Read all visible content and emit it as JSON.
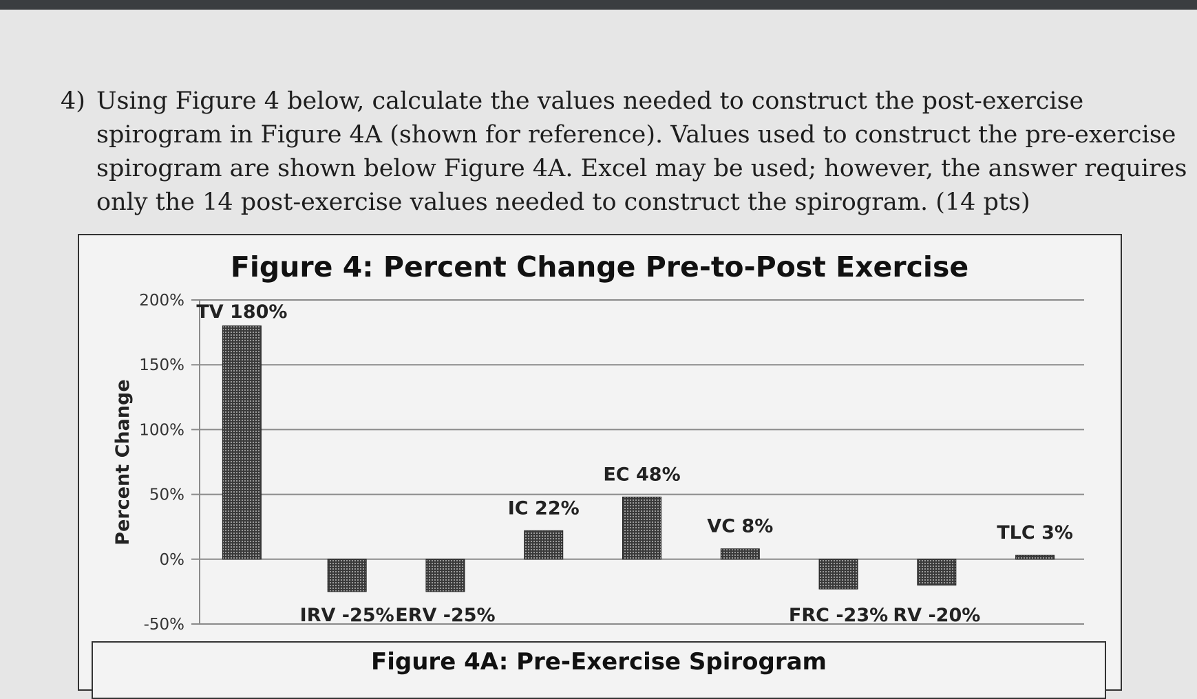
{
  "question": {
    "number": "4)",
    "lines": [
      "Using Figure 4 below, calculate the values needed to construct the post-exercise",
      "spirogram in Figure 4A (shown for reference).  Values used to construct the pre-exercise",
      "spirogram are shown below Figure 4A.  Excel may be used; however, the answer requires",
      "only the 14 post-exercise values needed to construct the spirogram.  (14 pts)"
    ]
  },
  "figure4a": {
    "title": "Figure 4A: Pre-Exercise Spirogram"
  },
  "chart_data": {
    "type": "bar",
    "title": "Figure 4: Percent Change Pre-to-Post Exercise",
    "ylabel": "Percent Change",
    "xlabel": "",
    "ylim": [
      -50,
      200
    ],
    "yticks": [
      "200%",
      "150%",
      "100%",
      "50%",
      "0%",
      "-50%"
    ],
    "ytick_values": [
      200,
      150,
      100,
      50,
      0,
      -50
    ],
    "categories": [
      "TV",
      "IRV",
      "ERV",
      "IC",
      "EC",
      "VC",
      "FRC",
      "RV",
      "TLC"
    ],
    "values": [
      180,
      -25,
      -25,
      22,
      48,
      8,
      -23,
      -20,
      3
    ],
    "data_labels": [
      "TV 180%",
      "IRV -25%",
      "ERV -25%",
      "IC 22%",
      "EC 48%",
      "VC 8%",
      "FRC -23%",
      "RV -20%",
      "TLC 3%"
    ],
    "grid": true,
    "bar_color": "#3a3a3a"
  }
}
